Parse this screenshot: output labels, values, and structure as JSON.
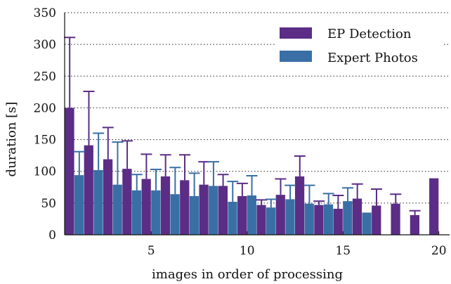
{
  "chart_data": {
    "type": "bar",
    "xlabel": "images in order of processing",
    "ylabel": "duration [s]",
    "ylim": [
      0,
      350
    ],
    "yticks": [
      0,
      50,
      100,
      150,
      200,
      250,
      300,
      350
    ],
    "xticks": [
      5,
      10,
      15,
      20
    ],
    "grid": "horizontal-dotted",
    "legend_position": "top-right",
    "x": [
      1,
      2,
      3,
      4,
      5,
      6,
      7,
      8,
      9,
      10,
      11,
      12,
      13,
      14,
      15,
      16,
      17,
      18,
      19,
      20
    ],
    "series": [
      {
        "name": "EP Detection",
        "color": "#5b2d86",
        "values": [
          200,
          141,
          119,
          104,
          88,
          92,
          86,
          79,
          77,
          61,
          47,
          63,
          92,
          47,
          41,
          57,
          46,
          49,
          31,
          89
        ],
        "error_upper": [
          311,
          226,
          169,
          148,
          127,
          126,
          126,
          115,
          95,
          81,
          55,
          88,
          124,
          53,
          62,
          80,
          72,
          64,
          38,
          89
        ]
      },
      {
        "name": "Expert Photos",
        "color": "#3a6fa6",
        "values": [
          94,
          102,
          79,
          70,
          70,
          64,
          61,
          77,
          52,
          62,
          43,
          56,
          49,
          48,
          53,
          35,
          null,
          null,
          null,
          null
        ],
        "error_upper": [
          131,
          160,
          146,
          95,
          103,
          106,
          97,
          115,
          84,
          93,
          56,
          78,
          78,
          65,
          74,
          35,
          null,
          null,
          null,
          null
        ]
      }
    ]
  }
}
